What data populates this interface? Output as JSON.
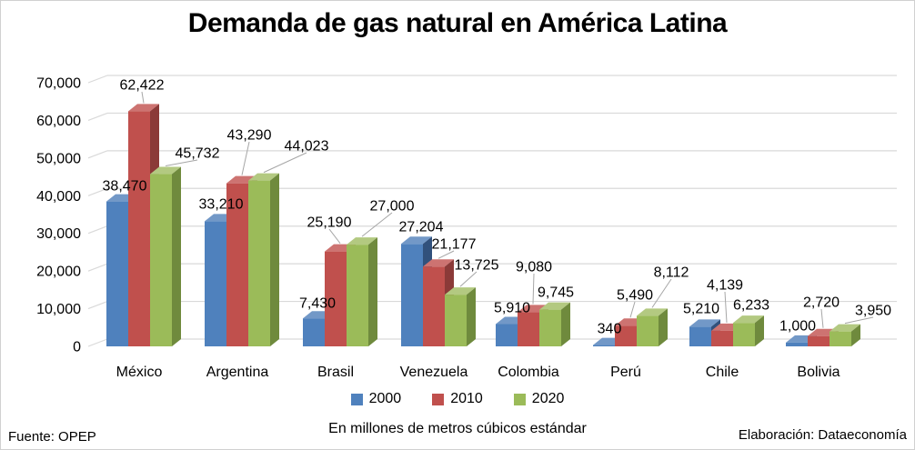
{
  "title": "Demanda de gas natural en América Latina",
  "footer": {
    "source": "Fuente: OPEP",
    "unit_note": "En millones de metros cúbicos estándar",
    "credit": "Elaboración: Dataeconomía"
  },
  "colors": {
    "gridline": "#d9d9d9",
    "leader_line": "#a6a6a6",
    "frame_border": "#d0d0d0",
    "text": "#000000"
  },
  "chart_data": {
    "type": "bar",
    "style": "3d-clustered-column",
    "title": "Demanda de gas natural en América Latina",
    "categories": [
      "México",
      "Argentina",
      "Brasil",
      "Venezuela",
      "Colombia",
      "Perú",
      "Chile",
      "Bolivia"
    ],
    "series": [
      {
        "name": "2000",
        "color": "#4f81bd",
        "color_top": "#7298c7",
        "color_side": "#31517c",
        "values": [
          38470,
          33210,
          7430,
          27204,
          5910,
          340,
          5210,
          1000
        ]
      },
      {
        "name": "2010",
        "color": "#c0504d",
        "color_top": "#cd7371",
        "color_side": "#8b3a38",
        "values": [
          62422,
          43290,
          25190,
          21177,
          9080,
          5490,
          4139,
          2720
        ]
      },
      {
        "name": "2020",
        "color": "#9bbb59",
        "color_top": "#b3c981",
        "color_side": "#6f8a3d",
        "values": [
          45732,
          44023,
          27000,
          13725,
          9745,
          8112,
          6233,
          3950
        ]
      }
    ],
    "ylim": [
      0,
      70000
    ],
    "ytick_step": 10000,
    "ytick_labels": [
      "0",
      "10,000",
      "20,000",
      "30,000",
      "40,000",
      "50,000",
      "60,000",
      "70,000"
    ],
    "data_labels": true,
    "grid": true,
    "legend_position": "bottom"
  }
}
